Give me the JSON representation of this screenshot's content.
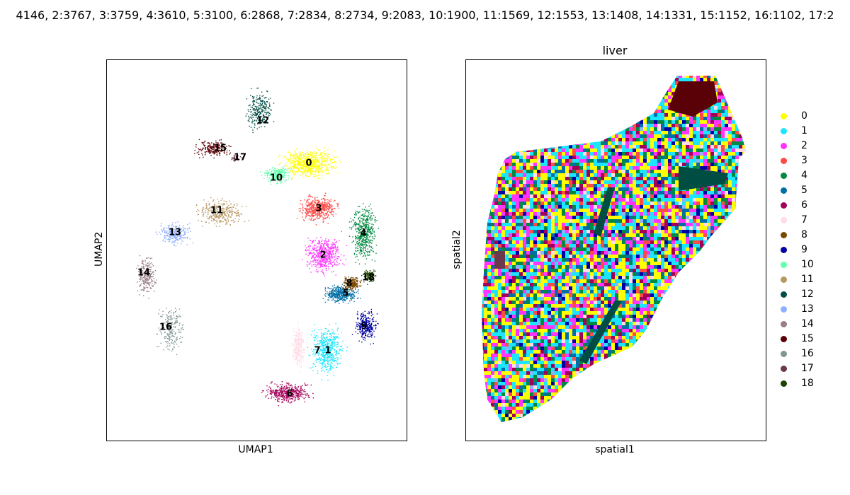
{
  "figure": {
    "supertitle": "4146, 2:3767, 3:3759, 4:3610, 5:3100, 6:2868, 7:2834, 8:2734, 9:2083, 10:1900, 11:1569, 12:1553, 13:1408, 14:1331, 15:1152, 16:1102, 17:2"
  },
  "chart_data": [
    {
      "type": "scatter",
      "title": "",
      "xlabel": "UMAP1",
      "ylabel": "UMAP2",
      "xticks": false,
      "yticks": false,
      "cluster_labels": [
        "0",
        "1",
        "2",
        "3",
        "4",
        "5",
        "6",
        "7",
        "8",
        "9",
        "10",
        "11",
        "12",
        "13",
        "14",
        "15",
        "16",
        "17",
        "18"
      ],
      "clusters": [
        {
          "id": "0",
          "color": "#ffff00"
        },
        {
          "id": "1",
          "color": "#1ce6ff"
        },
        {
          "id": "2",
          "color": "#ff34ff"
        },
        {
          "id": "3",
          "color": "#ff4a46"
        },
        {
          "id": "4",
          "color": "#008941"
        },
        {
          "id": "5",
          "color": "#006fa6"
        },
        {
          "id": "6",
          "color": "#a30059"
        },
        {
          "id": "7",
          "color": "#ffdbe5"
        },
        {
          "id": "8",
          "color": "#7a4900"
        },
        {
          "id": "9",
          "color": "#0000a6"
        },
        {
          "id": "10",
          "color": "#63ffac"
        },
        {
          "id": "11",
          "color": "#b79762"
        },
        {
          "id": "12",
          "color": "#004d43"
        },
        {
          "id": "13",
          "color": "#8fb0ff"
        },
        {
          "id": "14",
          "color": "#997d87"
        },
        {
          "id": "15",
          "color": "#5a0007"
        },
        {
          "id": "16",
          "color": "#809693"
        },
        {
          "id": "17",
          "color": "#6a3a4c"
        },
        {
          "id": "18",
          "color": "#1b4400"
        }
      ]
    },
    {
      "type": "scatter",
      "title": "liver",
      "xlabel": "spatial1",
      "ylabel": "spatial2",
      "xticks": false,
      "yticks": false,
      "legend_position": "right",
      "legend": [
        {
          "label": "0",
          "color": "#ffff00"
        },
        {
          "label": "1",
          "color": "#1ce6ff"
        },
        {
          "label": "2",
          "color": "#ff34ff"
        },
        {
          "label": "3",
          "color": "#ff4a46"
        },
        {
          "label": "4",
          "color": "#008941"
        },
        {
          "label": "5",
          "color": "#006fa6"
        },
        {
          "label": "6",
          "color": "#a30059"
        },
        {
          "label": "7",
          "color": "#ffdbe5"
        },
        {
          "label": "8",
          "color": "#7a4900"
        },
        {
          "label": "9",
          "color": "#0000a6"
        },
        {
          "label": "10",
          "color": "#63ffac"
        },
        {
          "label": "11",
          "color": "#b79762"
        },
        {
          "label": "12",
          "color": "#004d43"
        },
        {
          "label": "13",
          "color": "#8fb0ff"
        },
        {
          "label": "14",
          "color": "#997d87"
        },
        {
          "label": "15",
          "color": "#5a0007"
        },
        {
          "label": "16",
          "color": "#809693"
        },
        {
          "label": "17",
          "color": "#6a3a4c"
        },
        {
          "label": "18",
          "color": "#1b4400"
        }
      ]
    }
  ]
}
